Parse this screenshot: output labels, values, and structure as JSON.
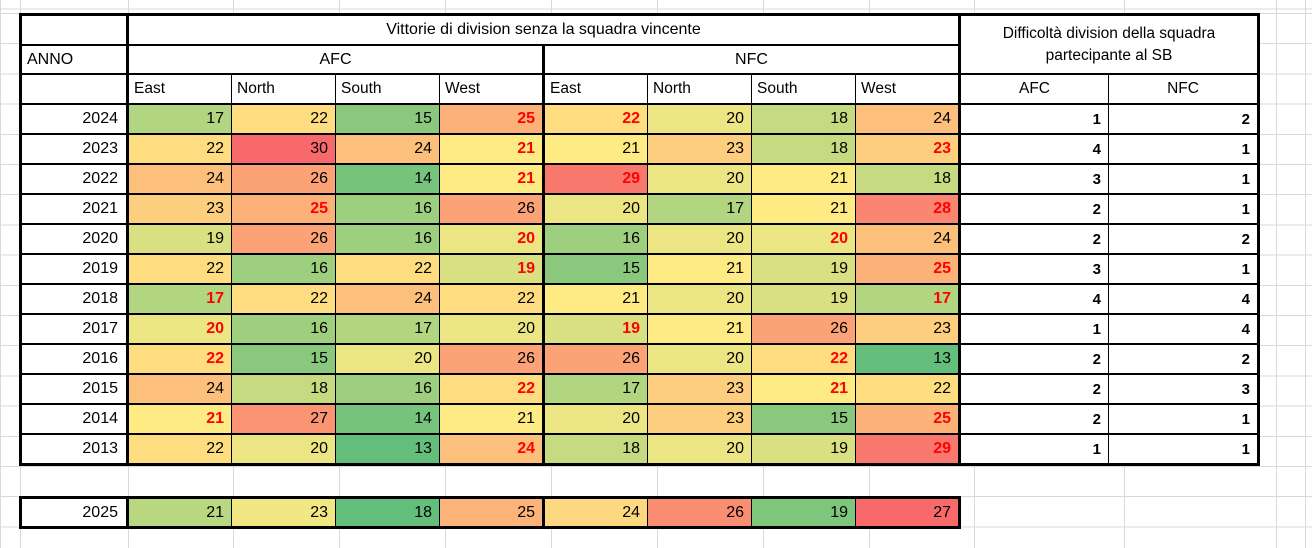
{
  "colors": {
    "heat_low": "#63BE7B",
    "heat_mid": "#FFEB84",
    "heat_high": "#F8696B",
    "highlight_text": "#FF0000",
    "gridline": "#D9D9D9"
  },
  "table": {
    "title": "Vittorie di division senza la squadra vincente",
    "anno_label": "ANNO",
    "afc_label": "AFC",
    "nfc_label": "NFC",
    "division_headers": [
      "East",
      "North",
      "South",
      "West"
    ],
    "difficulty_title_line1": "Difficoltà division della squadra",
    "difficulty_title_line2": "partecipante al SB",
    "difficulty_headers": [
      "AFC",
      "NFC"
    ],
    "rows": [
      {
        "year": "2024",
        "afc": [
          {
            "v": "17",
            "bg": "#B1D580"
          },
          {
            "v": "22",
            "bg": "#FEDD81"
          },
          {
            "v": "15",
            "bg": "#8AC97D"
          },
          {
            "v": "25",
            "bg": "#FCB179",
            "red": true
          }
        ],
        "nfc": [
          {
            "v": "22",
            "bg": "#FEDD81",
            "red": true
          },
          {
            "v": "20",
            "bg": "#ECE583"
          },
          {
            "v": "18",
            "bg": "#C5DA81"
          },
          {
            "v": "24",
            "bg": "#FDC07C"
          }
        ],
        "diff": [
          "1",
          "2"
        ]
      },
      {
        "year": "2023",
        "afc": [
          {
            "v": "22",
            "bg": "#FEDD81"
          },
          {
            "v": "30",
            "bg": "#F8696B"
          },
          {
            "v": "24",
            "bg": "#FDC07C"
          },
          {
            "v": "21",
            "bg": "#FFEB84",
            "red": true
          }
        ],
        "nfc": [
          {
            "v": "21",
            "bg": "#FFEB84"
          },
          {
            "v": "23",
            "bg": "#FDCE7E"
          },
          {
            "v": "18",
            "bg": "#C5DA81"
          },
          {
            "v": "23",
            "bg": "#FDCE7E",
            "red": true
          }
        ],
        "diff": [
          "4",
          "1"
        ]
      },
      {
        "year": "2022",
        "afc": [
          {
            "v": "24",
            "bg": "#FDC07C"
          },
          {
            "v": "26",
            "bg": "#FBA376"
          },
          {
            "v": "14",
            "bg": "#76C47C"
          },
          {
            "v": "21",
            "bg": "#FFEB84",
            "red": true
          }
        ],
        "nfc": [
          {
            "v": "29",
            "bg": "#F9786E",
            "red": true
          },
          {
            "v": "20",
            "bg": "#ECE583"
          },
          {
            "v": "21",
            "bg": "#FFEB84"
          },
          {
            "v": "18",
            "bg": "#C5DA81"
          }
        ],
        "diff": [
          "3",
          "1"
        ]
      },
      {
        "year": "2021",
        "afc": [
          {
            "v": "23",
            "bg": "#FDCE7E"
          },
          {
            "v": "25",
            "bg": "#FCB179",
            "red": true
          },
          {
            "v": "16",
            "bg": "#9ECF7E"
          },
          {
            "v": "26",
            "bg": "#FBA376"
          }
        ],
        "nfc": [
          {
            "v": "20",
            "bg": "#ECE583"
          },
          {
            "v": "17",
            "bg": "#B1D580"
          },
          {
            "v": "21",
            "bg": "#FFEB84"
          },
          {
            "v": "28",
            "bg": "#FA8671",
            "red": true
          }
        ],
        "diff": [
          "2",
          "1"
        ]
      },
      {
        "year": "2020",
        "afc": [
          {
            "v": "19",
            "bg": "#D8E082"
          },
          {
            "v": "26",
            "bg": "#FBA376"
          },
          {
            "v": "16",
            "bg": "#9ECF7E"
          },
          {
            "v": "20",
            "bg": "#ECE583",
            "red": true
          }
        ],
        "nfc": [
          {
            "v": "16",
            "bg": "#9ECF7E"
          },
          {
            "v": "20",
            "bg": "#ECE583"
          },
          {
            "v": "20",
            "bg": "#ECE583",
            "red": true
          },
          {
            "v": "24",
            "bg": "#FDC07C"
          }
        ],
        "diff": [
          "2",
          "2"
        ]
      },
      {
        "year": "2019",
        "afc": [
          {
            "v": "22",
            "bg": "#FEDD81"
          },
          {
            "v": "16",
            "bg": "#9ECF7E"
          },
          {
            "v": "22",
            "bg": "#FEDD81"
          },
          {
            "v": "19",
            "bg": "#D8E082",
            "red": true
          }
        ],
        "nfc": [
          {
            "v": "15",
            "bg": "#8AC97D"
          },
          {
            "v": "21",
            "bg": "#FFEB84"
          },
          {
            "v": "19",
            "bg": "#D8E082"
          },
          {
            "v": "25",
            "bg": "#FCB179",
            "red": true
          }
        ],
        "diff": [
          "3",
          "1"
        ]
      },
      {
        "year": "2018",
        "afc": [
          {
            "v": "17",
            "bg": "#B1D580",
            "red": true
          },
          {
            "v": "22",
            "bg": "#FEDD81"
          },
          {
            "v": "24",
            "bg": "#FDC07C"
          },
          {
            "v": "22",
            "bg": "#FEDD81"
          }
        ],
        "nfc": [
          {
            "v": "21",
            "bg": "#FFEB84"
          },
          {
            "v": "20",
            "bg": "#ECE583"
          },
          {
            "v": "19",
            "bg": "#D8E082"
          },
          {
            "v": "17",
            "bg": "#B1D580",
            "red": true
          }
        ],
        "diff": [
          "4",
          "4"
        ]
      },
      {
        "year": "2017",
        "afc": [
          {
            "v": "20",
            "bg": "#ECE583",
            "red": true
          },
          {
            "v": "16",
            "bg": "#9ECF7E"
          },
          {
            "v": "17",
            "bg": "#B1D580"
          },
          {
            "v": "20",
            "bg": "#ECE583"
          }
        ],
        "nfc": [
          {
            "v": "19",
            "bg": "#D8E082",
            "red": true
          },
          {
            "v": "21",
            "bg": "#FFEB84"
          },
          {
            "v": "26",
            "bg": "#FBA376"
          },
          {
            "v": "23",
            "bg": "#FDCE7E"
          }
        ],
        "diff": [
          "1",
          "4"
        ]
      },
      {
        "year": "2016",
        "afc": [
          {
            "v": "22",
            "bg": "#FEDD81",
            "red": true
          },
          {
            "v": "15",
            "bg": "#8AC97D"
          },
          {
            "v": "20",
            "bg": "#ECE583"
          },
          {
            "v": "26",
            "bg": "#FBA376"
          }
        ],
        "nfc": [
          {
            "v": "26",
            "bg": "#FBA376"
          },
          {
            "v": "20",
            "bg": "#ECE583"
          },
          {
            "v": "22",
            "bg": "#FEDD81",
            "red": true
          },
          {
            "v": "13",
            "bg": "#63BE7B"
          }
        ],
        "diff": [
          "2",
          "2"
        ]
      },
      {
        "year": "2015",
        "afc": [
          {
            "v": "24",
            "bg": "#FDC07C"
          },
          {
            "v": "18",
            "bg": "#C5DA81"
          },
          {
            "v": "16",
            "bg": "#9ECF7E"
          },
          {
            "v": "22",
            "bg": "#FEDD81",
            "red": true
          }
        ],
        "nfc": [
          {
            "v": "17",
            "bg": "#B1D580"
          },
          {
            "v": "23",
            "bg": "#FDCE7E"
          },
          {
            "v": "21",
            "bg": "#FFEB84",
            "red": true
          },
          {
            "v": "22",
            "bg": "#FEDD81"
          }
        ],
        "diff": [
          "2",
          "3"
        ]
      },
      {
        "year": "2014",
        "afc": [
          {
            "v": "21",
            "bg": "#FFEB84",
            "red": true
          },
          {
            "v": "27",
            "bg": "#FA9473"
          },
          {
            "v": "14",
            "bg": "#76C47C"
          },
          {
            "v": "21",
            "bg": "#FFEB84"
          }
        ],
        "nfc": [
          {
            "v": "20",
            "bg": "#ECE583"
          },
          {
            "v": "23",
            "bg": "#FDCE7E"
          },
          {
            "v": "15",
            "bg": "#8AC97D"
          },
          {
            "v": "25",
            "bg": "#FCB179",
            "red": true
          }
        ],
        "diff": [
          "2",
          "1"
        ]
      },
      {
        "year": "2013",
        "afc": [
          {
            "v": "22",
            "bg": "#FEDD81"
          },
          {
            "v": "20",
            "bg": "#ECE583"
          },
          {
            "v": "13",
            "bg": "#63BE7B"
          },
          {
            "v": "24",
            "bg": "#FDC07C",
            "red": true
          }
        ],
        "nfc": [
          {
            "v": "18",
            "bg": "#C5DA81"
          },
          {
            "v": "20",
            "bg": "#ECE583"
          },
          {
            "v": "19",
            "bg": "#D8E082"
          },
          {
            "v": "29",
            "bg": "#F9786E",
            "red": true
          }
        ],
        "diff": [
          "1",
          "1"
        ]
      }
    ],
    "extra_row": {
      "year": "2025",
      "afc": [
        {
          "v": "21",
          "bg": "#B8D780"
        },
        {
          "v": "23",
          "bg": "#F1E783"
        },
        {
          "v": "18",
          "bg": "#63BE7B"
        },
        {
          "v": "25",
          "bg": "#FCB379"
        }
      ],
      "nfc": [
        {
          "v": "24",
          "bg": "#FED880"
        },
        {
          "v": "26",
          "bg": "#FA8E72"
        },
        {
          "v": "19",
          "bg": "#7FC67D"
        },
        {
          "v": "27",
          "bg": "#F8696B"
        }
      ]
    }
  }
}
